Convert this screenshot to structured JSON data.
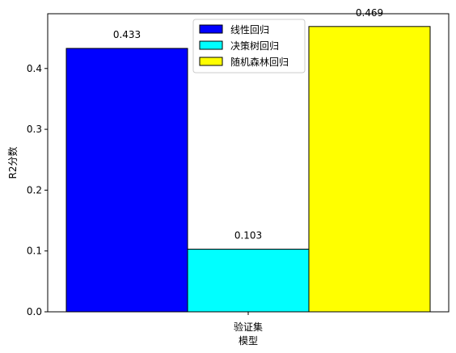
{
  "chart_data": {
    "type": "bar",
    "categories": [
      "验证集"
    ],
    "series": [
      {
        "name": "线性回归",
        "values": [
          0.433
        ],
        "color": "#0000ff",
        "label": "0.433"
      },
      {
        "name": "决策树回归",
        "values": [
          0.103
        ],
        "color": "#00ffff",
        "label": "0.103"
      },
      {
        "name": "随机森林回归",
        "values": [
          0.469
        ],
        "color": "#ffff00",
        "label": "0.469"
      }
    ],
    "xlabel": "模型",
    "ylabel": "R2分数",
    "ylim": [
      0,
      0.49
    ],
    "yticks": [
      "0.0",
      "0.1",
      "0.2",
      "0.3",
      "0.4"
    ],
    "legend_position": "top-center",
    "grid": false
  }
}
